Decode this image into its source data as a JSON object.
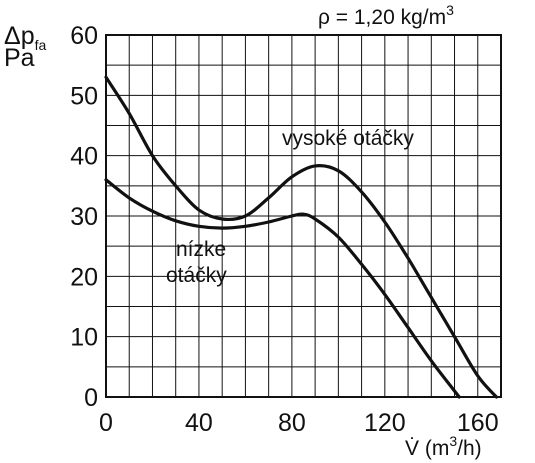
{
  "chart_data": {
    "type": "line",
    "x_axis": {
      "range": [
        0,
        170
      ],
      "ticks": [
        0,
        40,
        80,
        120,
        160
      ],
      "tick_labels": [
        "0",
        "40",
        "80",
        "120",
        "160"
      ],
      "label_main": "V̇ (m",
      "label_sup": "3",
      "label_tail": "/h)"
    },
    "y_axis": {
      "range": [
        0,
        60
      ],
      "ticks": [
        0,
        10,
        20,
        30,
        40,
        50,
        60
      ],
      "tick_labels": [
        "0",
        "10",
        "20",
        "30",
        "40",
        "50",
        "60"
      ],
      "label_line1_main": "Δp",
      "label_line1_sub": "fa",
      "label_line2": "Pa"
    },
    "annotation": {
      "main": "ρ = 1,20 kg/m",
      "sup": "3"
    },
    "grid": true,
    "series": [
      {
        "name": "vysoké otáčky",
        "points": [
          [
            0,
            53
          ],
          [
            10,
            47
          ],
          [
            20,
            40
          ],
          [
            30,
            35
          ],
          [
            40,
            31
          ],
          [
            50,
            29.5
          ],
          [
            60,
            30
          ],
          [
            70,
            33
          ],
          [
            80,
            36.5
          ],
          [
            90,
            38.3
          ],
          [
            100,
            37.5
          ],
          [
            110,
            34
          ],
          [
            120,
            29
          ],
          [
            130,
            23
          ],
          [
            140,
            16.5
          ],
          [
            150,
            10
          ],
          [
            160,
            3.5
          ],
          [
            168,
            0
          ]
        ]
      },
      {
        "name": "nízke otáčky",
        "points": [
          [
            0,
            36
          ],
          [
            10,
            33
          ],
          [
            20,
            30.8
          ],
          [
            30,
            29.2
          ],
          [
            40,
            28.3
          ],
          [
            50,
            28
          ],
          [
            60,
            28.3
          ],
          [
            70,
            29
          ],
          [
            80,
            30
          ],
          [
            85,
            30.3
          ],
          [
            90,
            29.5
          ],
          [
            100,
            26.5
          ],
          [
            110,
            22
          ],
          [
            120,
            17
          ],
          [
            130,
            11.5
          ],
          [
            140,
            6
          ],
          [
            150,
            1
          ],
          [
            152,
            0
          ]
        ]
      }
    ],
    "series_labels": {
      "high": "vysoké otáčky",
      "low_line1": "nízke",
      "low_line2": "otáčky"
    }
  }
}
